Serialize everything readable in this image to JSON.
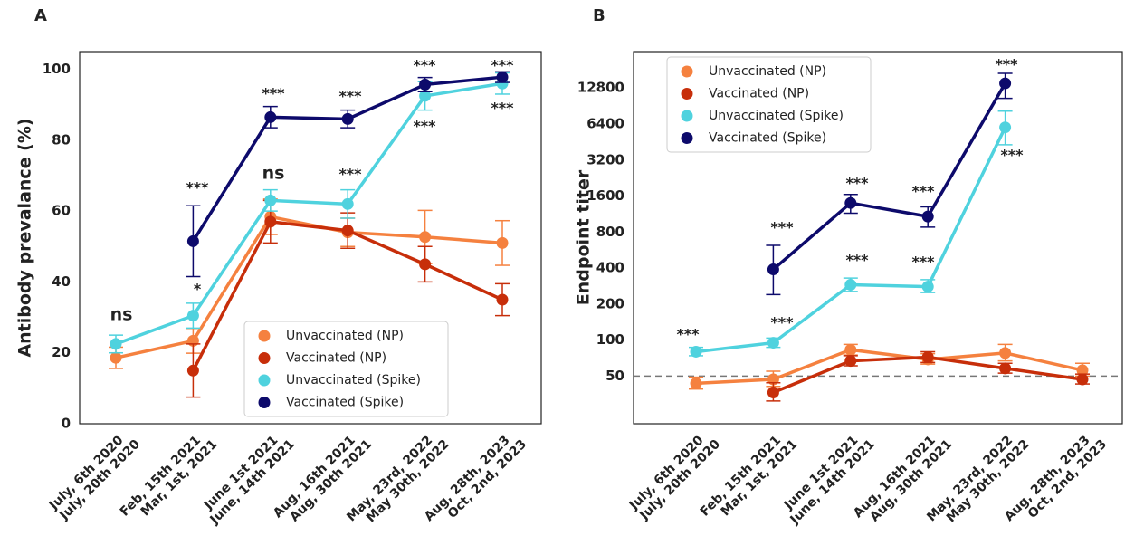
{
  "chart_data": [
    {
      "type": "line",
      "panel_label": "A",
      "ylabel": "Antibody prevalance (%)",
      "categories": [
        [
          "July, 6th 2020",
          "July, 20th 2020"
        ],
        [
          "Feb, 15th 2021",
          "Mar, 1st, 2021"
        ],
        [
          "June 1st 2021",
          "June, 14th 2021"
        ],
        [
          "Aug, 16th 2021",
          "Aug, 30th 2021"
        ],
        [
          "May, 23rd, 2022",
          "May 30th, 2022"
        ],
        [
          "Aug, 28th, 2023",
          "Oct, 2nd, 2023"
        ]
      ],
      "ylim": [
        0,
        105
      ],
      "yticks": [
        0,
        20,
        40,
        60,
        80,
        100
      ],
      "log_scale": false,
      "grid": false,
      "legend": "lower right",
      "series": [
        {
          "name": "Unvaccinated (NP)",
          "color": "#f5813f",
          "values": [
            18.6,
            23.4,
            58.4,
            54,
            52.7,
            51
          ],
          "lower": [
            15.6,
            19.9,
            53.4,
            50,
            45.2,
            44.7
          ],
          "upper": [
            21.6,
            26.9,
            63.4,
            58,
            60.2,
            57.3
          ]
        },
        {
          "name": "Vaccinated (NP)",
          "color": "#c72e0a",
          "values": [
            null,
            15,
            57,
            54.5,
            45,
            35
          ],
          "lower": [
            null,
            7.5,
            51,
            49.5,
            40,
            30.5
          ],
          "upper": [
            null,
            22.5,
            63,
            59.5,
            50,
            39.5
          ]
        },
        {
          "name": "Unvaccinated (Spike)",
          "color": "#4fd2de",
          "values": [
            22.5,
            30.5,
            63,
            62,
            92.5,
            96
          ],
          "lower": [
            20,
            27,
            60,
            58,
            88.5,
            93
          ],
          "upper": [
            25,
            34,
            66,
            66,
            96.5,
            99
          ]
        },
        {
          "name": "Vaccinated (Spike)",
          "color": "#0d0a6b",
          "values": [
            null,
            51.5,
            86.5,
            86,
            95.7,
            97.8
          ],
          "lower": [
            null,
            41.5,
            83.5,
            83.5,
            93.7,
            96.3
          ],
          "upper": [
            null,
            61.5,
            89.5,
            88.5,
            97.7,
            99.3
          ]
        }
      ],
      "annotations": [
        "ns",
        "***",
        "*",
        "ns",
        "***",
        "***",
        "***",
        "***",
        "***",
        "***",
        "***"
      ]
    },
    {
      "type": "line",
      "panel_label": "B",
      "ylabel": "Endpoint titer",
      "categories": [
        [
          "July, 6th 2020",
          "July, 20th 2020"
        ],
        [
          "Feb, 15th 2021",
          "Mar, 1st, 2021"
        ],
        [
          "June 1st 2021",
          "June, 14th 2021"
        ],
        [
          "Aug, 16th 2021",
          "Aug, 30th 2021"
        ],
        [
          "May, 23rd, 2022",
          "May 30th, 2022"
        ],
        [
          "Aug, 28th, 2023",
          "Oct, 2nd, 2023"
        ]
      ],
      "ylim": [
        20,
        25800
      ],
      "yticks": [
        50,
        100,
        200,
        400,
        800,
        1600,
        3200,
        6400,
        12800
      ],
      "log_scale": true,
      "grid": false,
      "legend": "upper left",
      "reference_line": 50,
      "series": [
        {
          "name": "Unvaccinated (NP)",
          "color": "#f5813f",
          "values": [
            43.5,
            47,
            83,
            69,
            78,
            56
          ],
          "lower": [
            39,
            41,
            75,
            63,
            67,
            50
          ],
          "upper": [
            49,
            55,
            92,
            77,
            92,
            64
          ]
        },
        {
          "name": "Vaccinated (NP)",
          "color": "#c72e0a",
          "values": [
            null,
            36.5,
            67,
            72,
            58,
            47
          ],
          "lower": [
            null,
            31,
            61,
            65,
            53,
            43
          ],
          "upper": [
            null,
            44,
            74,
            80,
            64,
            52
          ]
        },
        {
          "name": "Unvaccinated (Spike)",
          "color": "#4fd2de",
          "values": [
            80,
            95,
            290,
            280,
            6000,
            null
          ],
          "lower": [
            74,
            87,
            255,
            250,
            4300,
            null
          ],
          "upper": [
            87,
            104,
            330,
            320,
            8200,
            null
          ]
        },
        {
          "name": "Vaccinated (Spike)",
          "color": "#0d0a6b",
          "values": [
            null,
            390,
            1400,
            1080,
            14000,
            null
          ],
          "lower": [
            null,
            240,
            1150,
            880,
            10500,
            null
          ],
          "upper": [
            null,
            620,
            1650,
            1300,
            17000,
            null
          ]
        }
      ],
      "annotations": [
        "***",
        "***",
        "***",
        "***",
        "***",
        "***",
        "***",
        "***",
        "***"
      ]
    }
  ]
}
